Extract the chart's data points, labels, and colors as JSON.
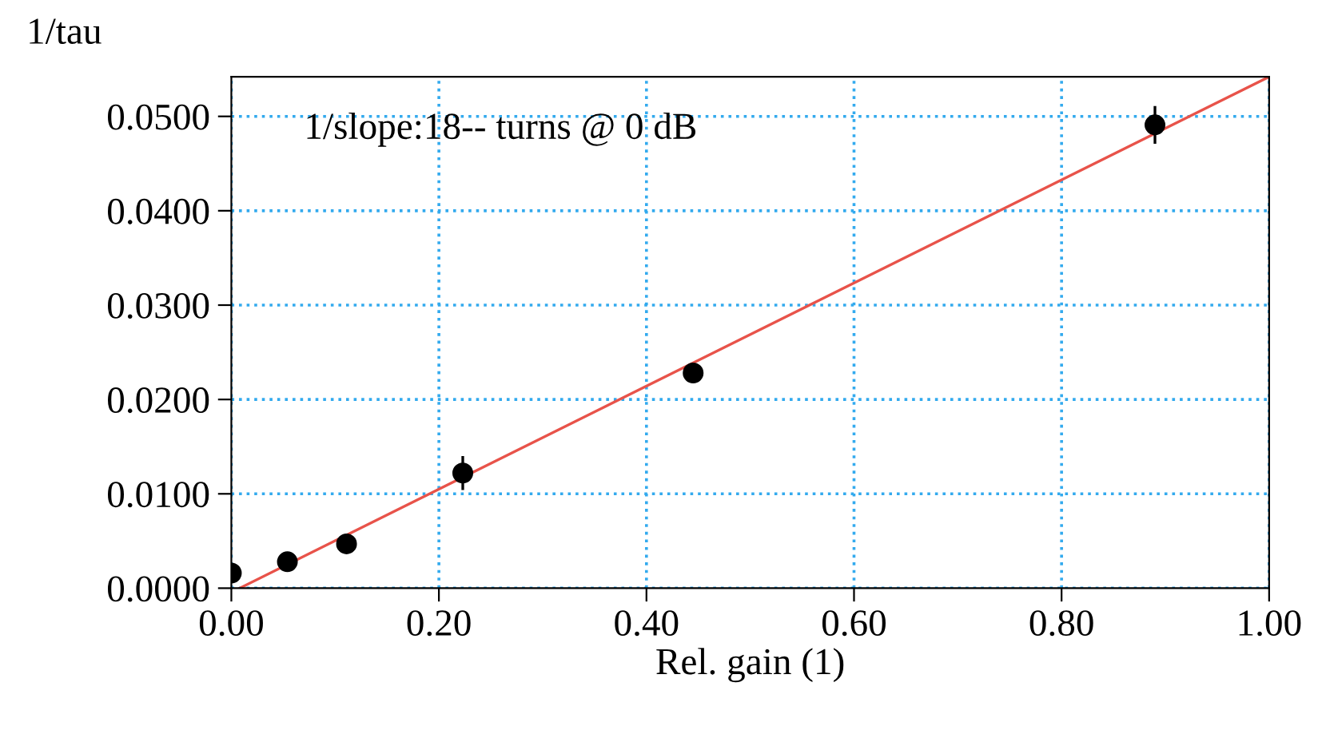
{
  "chart_data": {
    "type": "scatter",
    "xlabel": "Rel. gain (1)",
    "ylabel": "1/tau",
    "annotations": [
      "1/slope:18-- turns @ 0 dB"
    ],
    "series": [
      {
        "color": "#000000",
        "marker": "circle",
        "x": [
          0.0,
          0.054,
          0.111,
          0.223,
          0.445,
          0.89
        ],
        "values": [
          0.0016,
          0.0028,
          0.0047,
          0.0122,
          0.0228,
          0.0491
        ],
        "errors": [
          null,
          null,
          0.001,
          0.0018,
          null,
          0.002
        ]
      },
      {
        "type": "line",
        "color": "#e8534a",
        "x": [
          0.008,
          1.0
        ],
        "values": [
          0.0,
          0.0542
        ]
      }
    ],
    "xlim": [
      0,
      1.0
    ],
    "ylim": [
      0,
      0.0542
    ],
    "xticks": [
      {
        "value": 0,
        "label": "0.00"
      },
      {
        "value": 0.2,
        "label": "0.20"
      },
      {
        "value": 0.4,
        "label": "0.40"
      },
      {
        "value": 0.6,
        "label": "0.60"
      },
      {
        "value": 0.8,
        "label": "0.80"
      },
      {
        "value": 1.0,
        "label": "1.00"
      }
    ],
    "yticks": [
      {
        "value": 0,
        "label": "0.0000"
      },
      {
        "value": 0.01,
        "label": "0.0100"
      },
      {
        "value": 0.02,
        "label": "0.0200"
      },
      {
        "value": 0.03,
        "label": "0.0300"
      },
      {
        "value": 0.04,
        "label": "0.0400"
      },
      {
        "value": 0.05,
        "label": "0.0500"
      }
    ],
    "grid": true,
    "legend": false
  }
}
